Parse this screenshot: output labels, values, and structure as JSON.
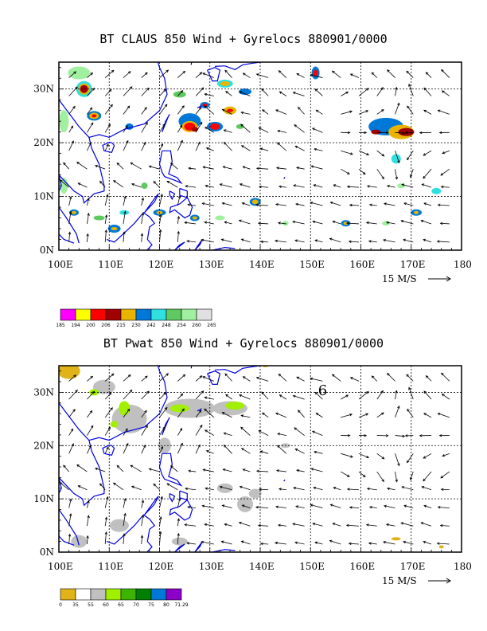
{
  "top_panel": {
    "title": "BT CLAUS 850 Wind + Gyrelocs 880901/0000",
    "y_ticks": [
      "30N",
      "20N",
      "10N",
      "0N"
    ],
    "x_ticks": [
      "100E",
      "110E",
      "120E",
      "130E",
      "140E",
      "150E",
      "160E",
      "170E",
      "180"
    ],
    "vector_scale": "15 M/S",
    "colorbar": {
      "labels": [
        "185",
        "194",
        "200",
        "206",
        "215",
        "230",
        "242",
        "248",
        "254",
        "260",
        "265"
      ],
      "colors": [
        "#ff00ff",
        "#ffff00",
        "#ff0000",
        "#a00000",
        "#e8b400",
        "#0078d8",
        "#30e0e0",
        "#60c860",
        "#a0f0a0",
        "#e0e0e0"
      ]
    }
  },
  "bottom_panel": {
    "title": "BT Pwat 850 Wind + Gyrelocs 880901/0000",
    "y_ticks": [
      "30N",
      "20N",
      "10N",
      "0N"
    ],
    "x_ticks": [
      "100E",
      "110E",
      "120E",
      "130E",
      "140E",
      "150E",
      "160E",
      "170E",
      "180"
    ],
    "vector_scale": "15 M/S",
    "gyre_label": "6",
    "colorbar": {
      "labels": [
        "0",
        "35",
        "55",
        "60",
        "65",
        "70",
        "75",
        "80",
        "71.29"
      ],
      "colors": [
        "#e0b418",
        "#ffffff",
        "#c0c0c0",
        "#a0f000",
        "#3cb400",
        "#008000",
        "#0078d8",
        "#8c00c8"
      ]
    }
  }
}
